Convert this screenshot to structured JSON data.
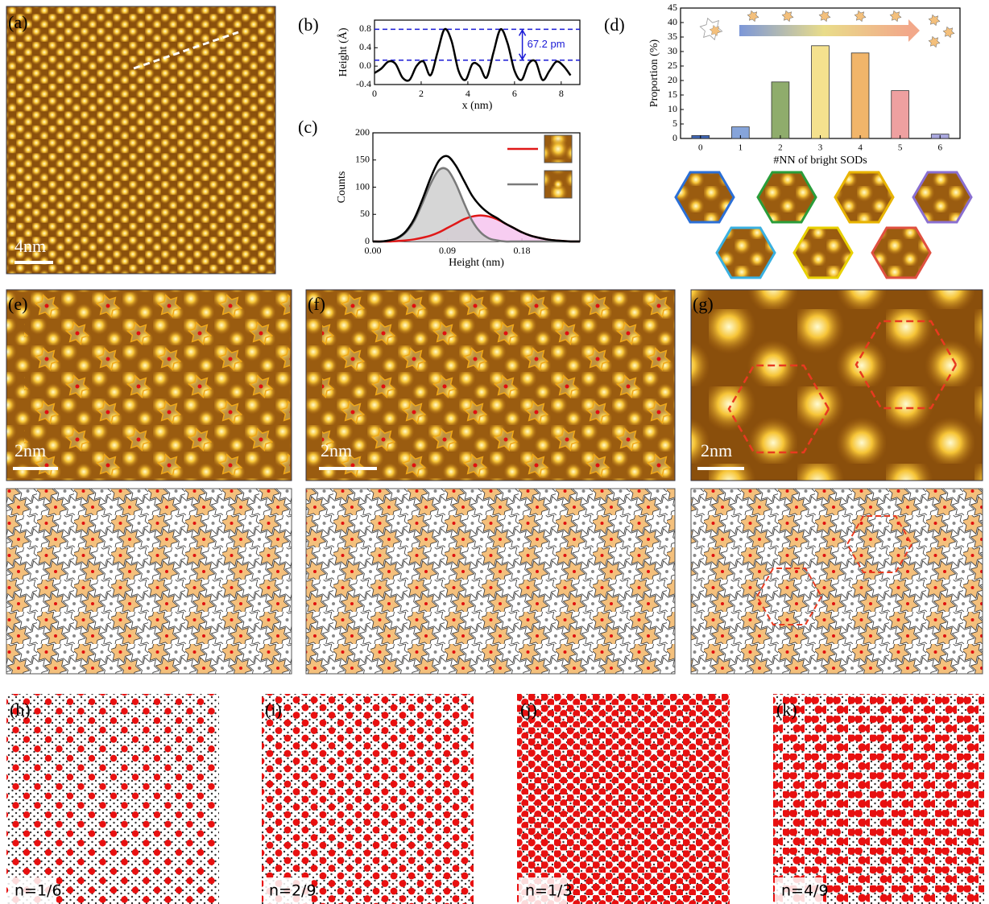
{
  "images": [
    {
      "label": "(a)",
      "scale_bar": "4nm"
    },
    {
      "label": "(e)",
      "scale_bar": "2nm"
    },
    {
      "label": "(f)",
      "scale_bar": "2nm"
    },
    {
      "label": "(g)",
      "scale_bar": "2nm"
    },
    {
      "label": "(h)",
      "filling": "n=1/6"
    },
    {
      "label": "(i)",
      "filling": "n=2/9"
    },
    {
      "label": "(j)",
      "filling": "n=1/3"
    },
    {
      "label": "(k)",
      "filling": "n=4/9"
    }
  ],
  "chart_data": [
    {
      "type": "line",
      "panel_label": "(b)",
      "xlabel": "x (nm)",
      "ylabel": "Height (Å)",
      "x": [
        0,
        0.3,
        0.6,
        0.9,
        1.2,
        1.5,
        1.8,
        2.1,
        2.4,
        2.7,
        3.0,
        3.3,
        3.6,
        3.9,
        4.2,
        4.5,
        4.8,
        5.1,
        5.4,
        5.7,
        6.0,
        6.3,
        6.6,
        6.9,
        7.2,
        7.5,
        7.8,
        8.1,
        8.4
      ],
      "series": [
        {
          "color": "#000000",
          "values": [
            -0.15,
            -0.05,
            0.1,
            0.05,
            -0.25,
            -0.3,
            0.0,
            0.1,
            -0.2,
            0.3,
            0.8,
            0.55,
            -0.1,
            -0.3,
            0.05,
            0.0,
            -0.25,
            0.3,
            0.8,
            0.5,
            -0.1,
            -0.3,
            0.05,
            0.1,
            -0.3,
            -0.1,
            0.1,
            0.0,
            -0.2
          ]
        }
      ],
      "reference_lines": [
        0.8,
        0.13
      ],
      "reference_color": "#1a1ad6",
      "annotation": "67.2 pm",
      "xlim": [
        0,
        8.8
      ],
      "xticks": [
        0,
        2,
        4,
        6,
        8
      ],
      "ylim": [
        -0.4,
        1.0
      ],
      "yticks": [
        -0.4,
        {
          "value": 0,
          "label": "0.0"
        },
        0.4,
        0.8
      ]
    },
    {
      "type": "line",
      "panel_label": "(c)",
      "xlabel": "Height (nm)",
      "ylabel": "Counts",
      "x": [
        0,
        0.01,
        0.02,
        0.03,
        0.04,
        0.05,
        0.06,
        0.07,
        0.08,
        0.09,
        0.1,
        0.11,
        0.12,
        0.13,
        0.14,
        0.15,
        0.16,
        0.17,
        0.18,
        0.19,
        0.2,
        0.21,
        0.22,
        0.23,
        0.24,
        0.25
      ],
      "series": [
        {
          "color": "#e01818",
          "fill": "#f6c4ef",
          "values": [
            0,
            0,
            0,
            1,
            2,
            4,
            7,
            11,
            17,
            25,
            33,
            41,
            46,
            48,
            46,
            41,
            33,
            25,
            17,
            11,
            7,
            4,
            2,
            1,
            0,
            0
          ]
        },
        {
          "color": "#7a7a7a",
          "fill": "#cfcfcf",
          "values": [
            0,
            0,
            2,
            6,
            17,
            38,
            71,
            107,
            132,
            132,
            107,
            71,
            38,
            17,
            6,
            2,
            0,
            0,
            0,
            0,
            0,
            0,
            0,
            0,
            0,
            0
          ]
        },
        {
          "color": "#000000",
          "values": [
            0,
            0,
            2,
            7,
            19,
            42,
            78,
            118,
            149,
            157,
            140,
            112,
            84,
            65,
            52,
            43,
            33,
            25,
            17,
            11,
            7,
            4,
            2,
            1,
            0,
            0
          ]
        }
      ],
      "legend": "upper right",
      "xlim": [
        0,
        0.25
      ],
      "xticks": [
        {
          "value": 0,
          "label": "0.00"
        },
        0.09,
        0.18
      ],
      "ylim": [
        0,
        200
      ],
      "yticks": [
        0,
        50,
        100,
        150,
        200
      ]
    },
    {
      "type": "bar",
      "panel_label": "(d)",
      "xlabel": "#NN of bright SODs",
      "ylabel": "Proportion (%)",
      "categories": [
        "0",
        "1",
        "2",
        "3",
        "4",
        "5",
        "6"
      ],
      "values": [
        1,
        4,
        19.5,
        32,
        29.5,
        16.5,
        1.5
      ],
      "colors": [
        "#3f67b8",
        "#86a4da",
        "#8fac6c",
        "#f4e18e",
        "#f1b56a",
        "#eea0a0",
        "#a9a7de"
      ],
      "ylim": [
        0,
        45
      ],
      "yticks": [
        0,
        5,
        10,
        15,
        20,
        25,
        30,
        35,
        40,
        45
      ]
    }
  ]
}
